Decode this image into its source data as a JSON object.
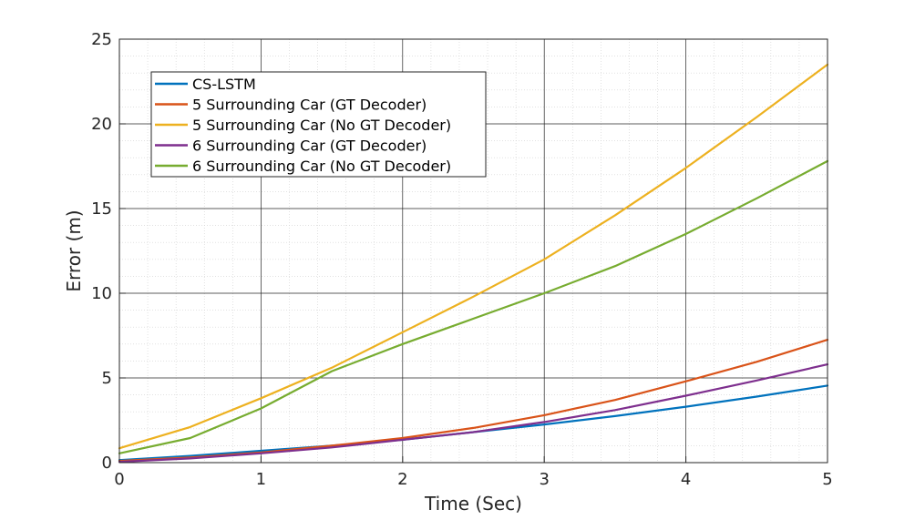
{
  "chart_data": {
    "type": "line",
    "title": "",
    "xlabel": "Time (Sec)",
    "ylabel": "Error (m)",
    "xlim": [
      0,
      5
    ],
    "ylim": [
      0,
      25
    ],
    "xticks": [
      "0",
      "1",
      "2",
      "3",
      "4",
      "5"
    ],
    "yticks": [
      "0",
      "5",
      "10",
      "15",
      "20",
      "25"
    ],
    "grid": true,
    "minor_grid": true,
    "legend_position": "top-left",
    "x": [
      0,
      0.5,
      1,
      1.5,
      2,
      2.5,
      3,
      3.5,
      4,
      4.5,
      5
    ],
    "series": [
      {
        "name": "CS-LSTM",
        "color": "#0072BD",
        "values": [
          0.15,
          0.4,
          0.7,
          1.0,
          1.35,
          1.8,
          2.25,
          2.75,
          3.3,
          3.9,
          4.55
        ]
      },
      {
        "name": "5 Surrounding Car (GT Decoder)",
        "color": "#D95319",
        "values": [
          0.1,
          0.3,
          0.6,
          1.0,
          1.45,
          2.05,
          2.8,
          3.7,
          4.8,
          5.95,
          7.25
        ]
      },
      {
        "name": "5 Surrounding Car (No GT Decoder)",
        "color": "#EDB120",
        "values": [
          0.85,
          2.1,
          3.8,
          5.6,
          7.7,
          9.8,
          12.0,
          14.6,
          17.4,
          20.4,
          23.5
        ]
      },
      {
        "name": "6 Surrounding Car (GT Decoder)",
        "color": "#7E2F8E",
        "values": [
          0.05,
          0.25,
          0.55,
          0.9,
          1.35,
          1.8,
          2.4,
          3.1,
          3.95,
          4.85,
          5.8
        ]
      },
      {
        "name": "6 Surrounding Car (No GT Decoder)",
        "color": "#77AC30",
        "values": [
          0.55,
          1.45,
          3.2,
          5.4,
          7.0,
          8.5,
          10.0,
          11.6,
          13.5,
          15.6,
          17.8
        ]
      }
    ]
  }
}
